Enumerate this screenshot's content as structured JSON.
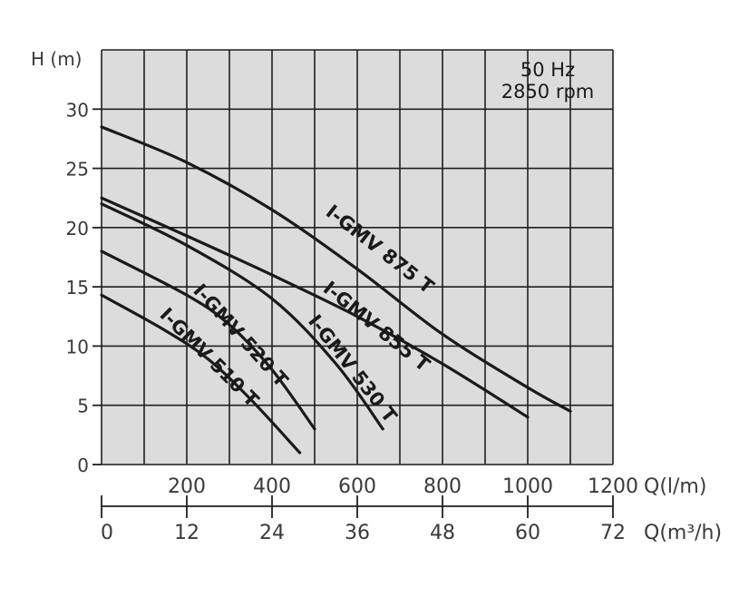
{
  "chart_data": {
    "type": "line",
    "ylabel": "H (m)",
    "xlabel": "Q(l/m)",
    "xlabel_secondary": "Q(m³/h)",
    "info_line1": "50 Hz",
    "info_line2": "2850 rpm",
    "xlim": [
      0,
      1200
    ],
    "ylim": [
      0,
      35
    ],
    "x_ticks": [
      "200",
      "400",
      "600",
      "800",
      "1000",
      "1200"
    ],
    "x_ticks_secondary": [
      "0",
      "12",
      "24",
      "36",
      "48",
      "60",
      "72"
    ],
    "y_ticks": [
      "0",
      "5",
      "10",
      "15",
      "20",
      "25",
      "30"
    ],
    "background": "#dcdcdc",
    "line_color": "#1a1a1a",
    "grid": true,
    "series": [
      {
        "name": "I-GMV 875 T",
        "x": [
          0,
          200,
          400,
          600,
          800,
          1000,
          1100
        ],
        "y": [
          28.5,
          25.5,
          21.5,
          16.5,
          11.0,
          6.5,
          4.5
        ]
      },
      {
        "name": "I-GMV 855 T",
        "x": [
          0,
          200,
          400,
          600,
          800,
          1000
        ],
        "y": [
          22.5,
          19.3,
          16.0,
          12.5,
          8.5,
          4.0
        ]
      },
      {
        "name": "I-GMV 530 T",
        "x": [
          0,
          200,
          400,
          550,
          660
        ],
        "y": [
          22.0,
          18.5,
          14.0,
          8.5,
          3.0
        ]
      },
      {
        "name": "I-GMV 520 T",
        "x": [
          0,
          200,
          300,
          400,
          500
        ],
        "y": [
          18.0,
          14.3,
          11.8,
          8.0,
          3.0
        ]
      },
      {
        "name": "I-GMV 510 T",
        "x": [
          0,
          150,
          250,
          350,
          465
        ],
        "y": [
          14.3,
          11.3,
          8.9,
          5.5,
          1.0
        ]
      }
    ]
  }
}
